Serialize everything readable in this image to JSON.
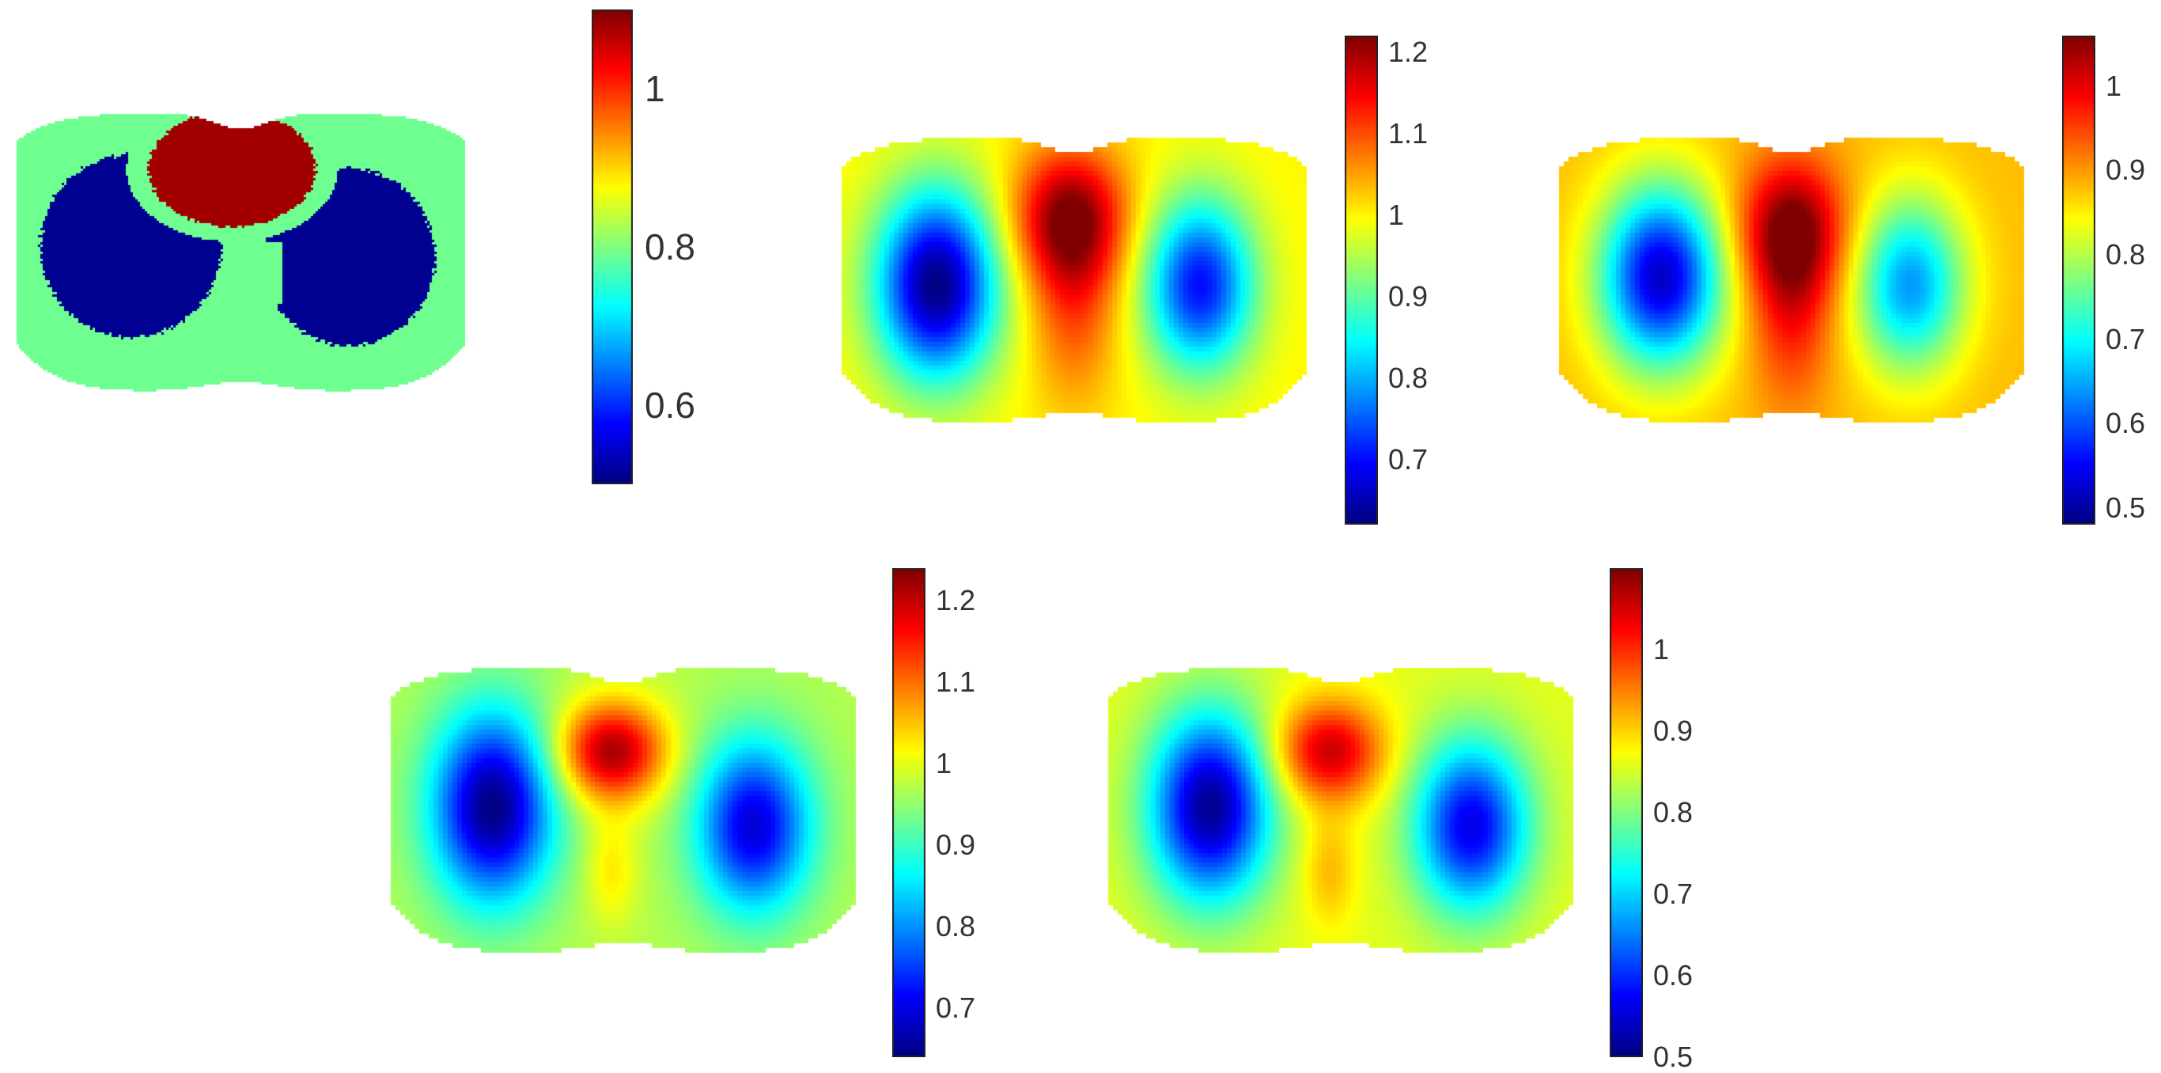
{
  "colormap": "jet",
  "chart_data": [
    {
      "type": "heatmap",
      "id": "ground-truth",
      "field": "segmented",
      "regions": [
        {
          "name": "background",
          "value": 0.79,
          "color": "#8cff73"
        },
        {
          "name": "lungs",
          "value": 0.51,
          "color": "#00008f"
        },
        {
          "name": "heart",
          "value": 1.08,
          "color": "#7f0000"
        }
      ],
      "colorbar": {
        "range": [
          0.5,
          1.1
        ],
        "ticks": [
          1,
          0.8,
          0.6
        ],
        "tick_labels": [
          "1",
          "0.8",
          "0.6"
        ]
      }
    },
    {
      "type": "heatmap",
      "id": "reconstruction-1",
      "field": "smooth-vertical",
      "base": 1.0,
      "blobs": [
        {
          "x": -0.58,
          "y": 0.05,
          "sx": 0.18,
          "sy": 0.42,
          "amp": -0.38
        },
        {
          "x": 0.53,
          "y": 0.05,
          "sx": 0.16,
          "sy": 0.38,
          "amp": -0.3
        },
        {
          "x": -0.02,
          "y": -0.38,
          "sx": 0.17,
          "sy": 0.3,
          "amp": 0.2
        },
        {
          "x": 0.0,
          "y": 0.15,
          "sx": 0.13,
          "sy": 0.45,
          "amp": 0.1
        }
      ],
      "colorbar": {
        "range": [
          0.62,
          1.22
        ],
        "ticks": [
          1.2,
          1.1,
          1,
          0.9,
          0.8,
          0.7
        ],
        "tick_labels": [
          "1.2",
          "1.1",
          "1",
          "0.9",
          "0.8",
          "0.7"
        ]
      }
    },
    {
      "type": "heatmap",
      "id": "reconstruction-2",
      "field": "smooth-vertical",
      "base": 0.88,
      "blobs": [
        {
          "x": -0.55,
          "y": 0.0,
          "sx": 0.18,
          "sy": 0.4,
          "amp": -0.36
        },
        {
          "x": 0.5,
          "y": 0.05,
          "sx": 0.16,
          "sy": 0.38,
          "amp": -0.24
        },
        {
          "x": 0.0,
          "y": -0.3,
          "sx": 0.16,
          "sy": 0.3,
          "amp": 0.16
        },
        {
          "x": 0.0,
          "y": 0.15,
          "sx": 0.12,
          "sy": 0.45,
          "amp": 0.1
        }
      ],
      "colorbar": {
        "range": [
          0.48,
          1.06
        ],
        "ticks": [
          1,
          0.9,
          0.8,
          0.7,
          0.6,
          0.5
        ],
        "tick_labels": [
          "1",
          "0.9",
          "0.8",
          "0.7",
          "0.6",
          "0.5"
        ]
      }
    },
    {
      "type": "heatmap",
      "id": "reconstruction-3",
      "field": "smooth-blob",
      "base": 0.97,
      "blobs": [
        {
          "x": -0.55,
          "y": 0.0,
          "sx": 0.18,
          "sy": 0.42,
          "amp": -0.33
        },
        {
          "x": 0.55,
          "y": 0.12,
          "sx": 0.17,
          "sy": 0.38,
          "amp": -0.28
        },
        {
          "x": -0.05,
          "y": -0.35,
          "sx": 0.16,
          "sy": 0.22,
          "amp": 0.25
        },
        {
          "x": -0.05,
          "y": 0.4,
          "sx": 0.08,
          "sy": 0.24,
          "amp": 0.06
        }
      ],
      "colorbar": {
        "range": [
          0.64,
          1.24
        ],
        "ticks": [
          1.2,
          1.1,
          1,
          0.9,
          0.8,
          0.7
        ],
        "tick_labels": [
          "1.2",
          "1.1",
          "1",
          "0.9",
          "0.8",
          "0.7"
        ]
      }
    },
    {
      "type": "heatmap",
      "id": "reconstruction-4",
      "field": "smooth-blob",
      "base": 0.86,
      "blobs": [
        {
          "x": -0.55,
          "y": 0.0,
          "sx": 0.18,
          "sy": 0.42,
          "amp": -0.35
        },
        {
          "x": 0.55,
          "y": 0.12,
          "sx": 0.17,
          "sy": 0.38,
          "amp": -0.3
        },
        {
          "x": -0.05,
          "y": -0.35,
          "sx": 0.16,
          "sy": 0.22,
          "amp": 0.2
        },
        {
          "x": -0.05,
          "y": 0.4,
          "sx": 0.08,
          "sy": 0.24,
          "amp": 0.06
        }
      ],
      "colorbar": {
        "range": [
          0.5,
          1.1
        ],
        "ticks": [
          1,
          0.9,
          0.8,
          0.7,
          0.6,
          0.5
        ],
        "tick_labels": [
          "1",
          "0.9",
          "0.8",
          "0.7",
          "0.6",
          "0.5"
        ]
      }
    }
  ]
}
